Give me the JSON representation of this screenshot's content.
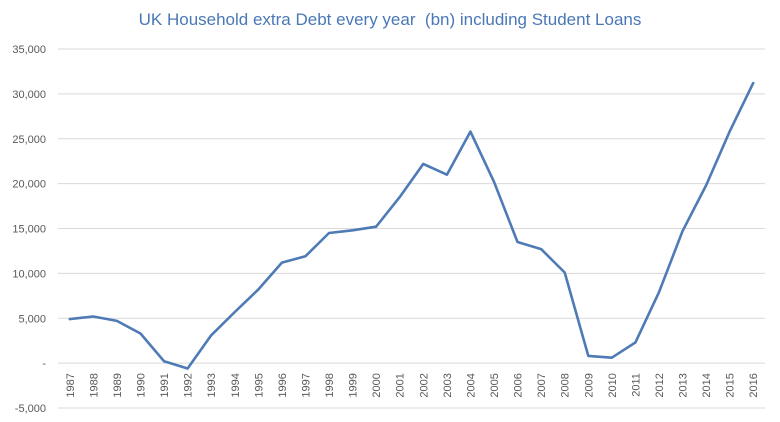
{
  "chart_data": {
    "type": "line",
    "title": "UK Household extra Debt every year  (bn) including Student Loans",
    "xlabel": "",
    "ylabel": "",
    "ylim": [
      -5000,
      35000
    ],
    "yticks": [
      -5000,
      0,
      5000,
      10000,
      15000,
      20000,
      25000,
      30000,
      35000
    ],
    "ytick_labels": [
      "-5,000",
      "-",
      "5,000",
      "10,000",
      "15,000",
      "20,000",
      "25,000",
      "30,000",
      "35,000"
    ],
    "categories": [
      "1987",
      "1988",
      "1989",
      "1990",
      "1991",
      "1992",
      "1993",
      "1994",
      "1995",
      "1996",
      "1997",
      "1998",
      "1999",
      "2000",
      "2001",
      "2002",
      "2003",
      "2004",
      "2005",
      "2006",
      "2007",
      "2008",
      "2009",
      "2010",
      "2011",
      "2012",
      "2013",
      "2014",
      "2015",
      "2016"
    ],
    "series": [
      {
        "color": "#4e7ab5",
        "values": [
          4900,
          5200,
          4700,
          3300,
          200,
          -600,
          3100,
          5700,
          8200,
          11200,
          11900,
          14500,
          14800,
          15200,
          18500,
          22200,
          21000,
          25800,
          20200,
          13500,
          12700,
          10100,
          800,
          600,
          2300,
          7900,
          14700,
          19800,
          25800,
          31200
        ]
      }
    ],
    "grid": true,
    "legend": "none"
  }
}
